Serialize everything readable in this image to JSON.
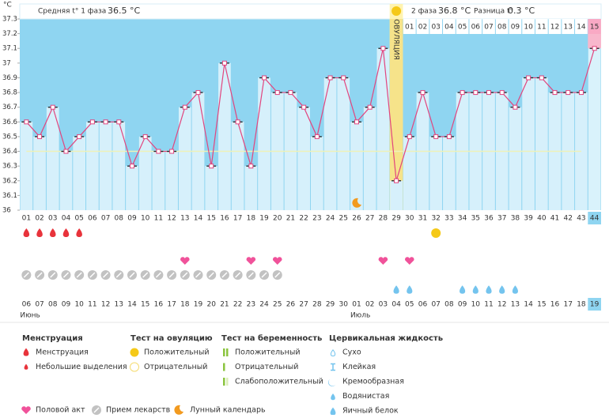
{
  "chart_data": {
    "type": "line",
    "y_unit": "°C",
    "phase1_label": "Средняя t° 1 фаза",
    "phase1_value": "36.5 °C",
    "phase2_label": "2 фаза",
    "phase2_value": "36.8 °C",
    "diff_label": "Разница t°",
    "diff_value": "0.3 °C",
    "ovulation_label": "ОВУЛЯЦИЯ",
    "ovulation_day": 29,
    "phase2_days": [
      "01",
      "02",
      "03",
      "04",
      "05",
      "06",
      "07",
      "08",
      "09",
      "10",
      "11",
      "12",
      "13",
      "14",
      "15"
    ],
    "categories": [
      "01",
      "02",
      "03",
      "04",
      "05",
      "06",
      "07",
      "08",
      "09",
      "10",
      "11",
      "12",
      "13",
      "14",
      "15",
      "16",
      "17",
      "18",
      "19",
      "20",
      "21",
      "22",
      "23",
      "24",
      "25",
      "26",
      "27",
      "28",
      "29",
      "30",
      "31",
      "32",
      "33",
      "34",
      "35",
      "36",
      "37",
      "38",
      "39",
      "40",
      "41",
      "42",
      "43",
      "44"
    ],
    "values": [
      36.6,
      36.5,
      36.7,
      36.4,
      36.5,
      36.6,
      36.6,
      36.6,
      36.3,
      36.5,
      36.4,
      36.4,
      36.7,
      36.8,
      36.3,
      37.0,
      36.6,
      36.3,
      36.9,
      36.8,
      36.8,
      36.7,
      36.5,
      36.9,
      36.9,
      36.6,
      36.7,
      37.1,
      36.2,
      36.5,
      36.8,
      36.5,
      36.5,
      36.8,
      36.8,
      36.8,
      36.8,
      36.7,
      36.9,
      36.9,
      36.8,
      36.8,
      36.8,
      37.1
    ],
    "color": "#e2457e",
    "cover_line": 36.4,
    "ylim": [
      36,
      37.3
    ],
    "yticks": [
      36,
      36.1,
      36.2,
      36.3,
      36.4,
      36.5,
      36.6,
      36.7,
      36.8,
      36.9,
      37,
      37.1,
      37.2,
      37.3
    ],
    "dates": [
      "06",
      "07",
      "08",
      "09",
      "10",
      "11",
      "12",
      "13",
      "14",
      "15",
      "16",
      "17",
      "18",
      "19",
      "20",
      "21",
      "22",
      "23",
      "24",
      "25",
      "26",
      "27",
      "28",
      "29",
      "30",
      "01",
      "02",
      "03",
      "04",
      "05",
      "06",
      "07",
      "08",
      "09",
      "10",
      "11",
      "12",
      "13",
      "14",
      "15",
      "16",
      "17",
      "18",
      "19"
    ],
    "weekend": [
      5,
      6,
      12,
      13,
      19,
      20,
      26,
      27,
      33,
      34,
      40,
      41
    ],
    "months": [
      {
        "index": 0,
        "label": "Июнь"
      },
      {
        "index": 25,
        "label": "Июль"
      }
    ],
    "menstruation_days": [
      1,
      2,
      3,
      4,
      5
    ],
    "ovulation_test_positive_days": [
      32
    ],
    "intercourse_days": [
      13,
      18,
      20,
      28,
      30
    ],
    "medication_days": [
      1,
      2,
      3,
      4,
      5,
      6,
      7,
      8,
      9,
      10,
      11,
      12,
      13,
      14,
      15,
      16,
      17,
      18,
      19,
      20
    ],
    "egg_white_days": [
      29,
      30,
      34,
      35,
      36,
      37,
      38
    ],
    "moon_days": [
      26
    ]
  },
  "legend": {
    "menstruation": {
      "title": "Менструация",
      "items": [
        "Менструация",
        "Небольшие выделения"
      ]
    },
    "ovulation_test": {
      "title": "Тест на овуляцию",
      "items": [
        "Положительный",
        "Отрицательный"
      ]
    },
    "pregnancy_test": {
      "title": "Тест на беременность",
      "items": [
        "Положительный",
        "Отрицательный",
        "Слабоположительный"
      ]
    },
    "cervical": {
      "title": "Цервикальная жидкость",
      "items": [
        "Сухо",
        "Клейкая",
        "Кремообразная",
        "Водянистая",
        "Яичный белок"
      ]
    },
    "bottom": [
      "Половой акт",
      "Прием лекарств",
      "Лунный календарь"
    ]
  }
}
